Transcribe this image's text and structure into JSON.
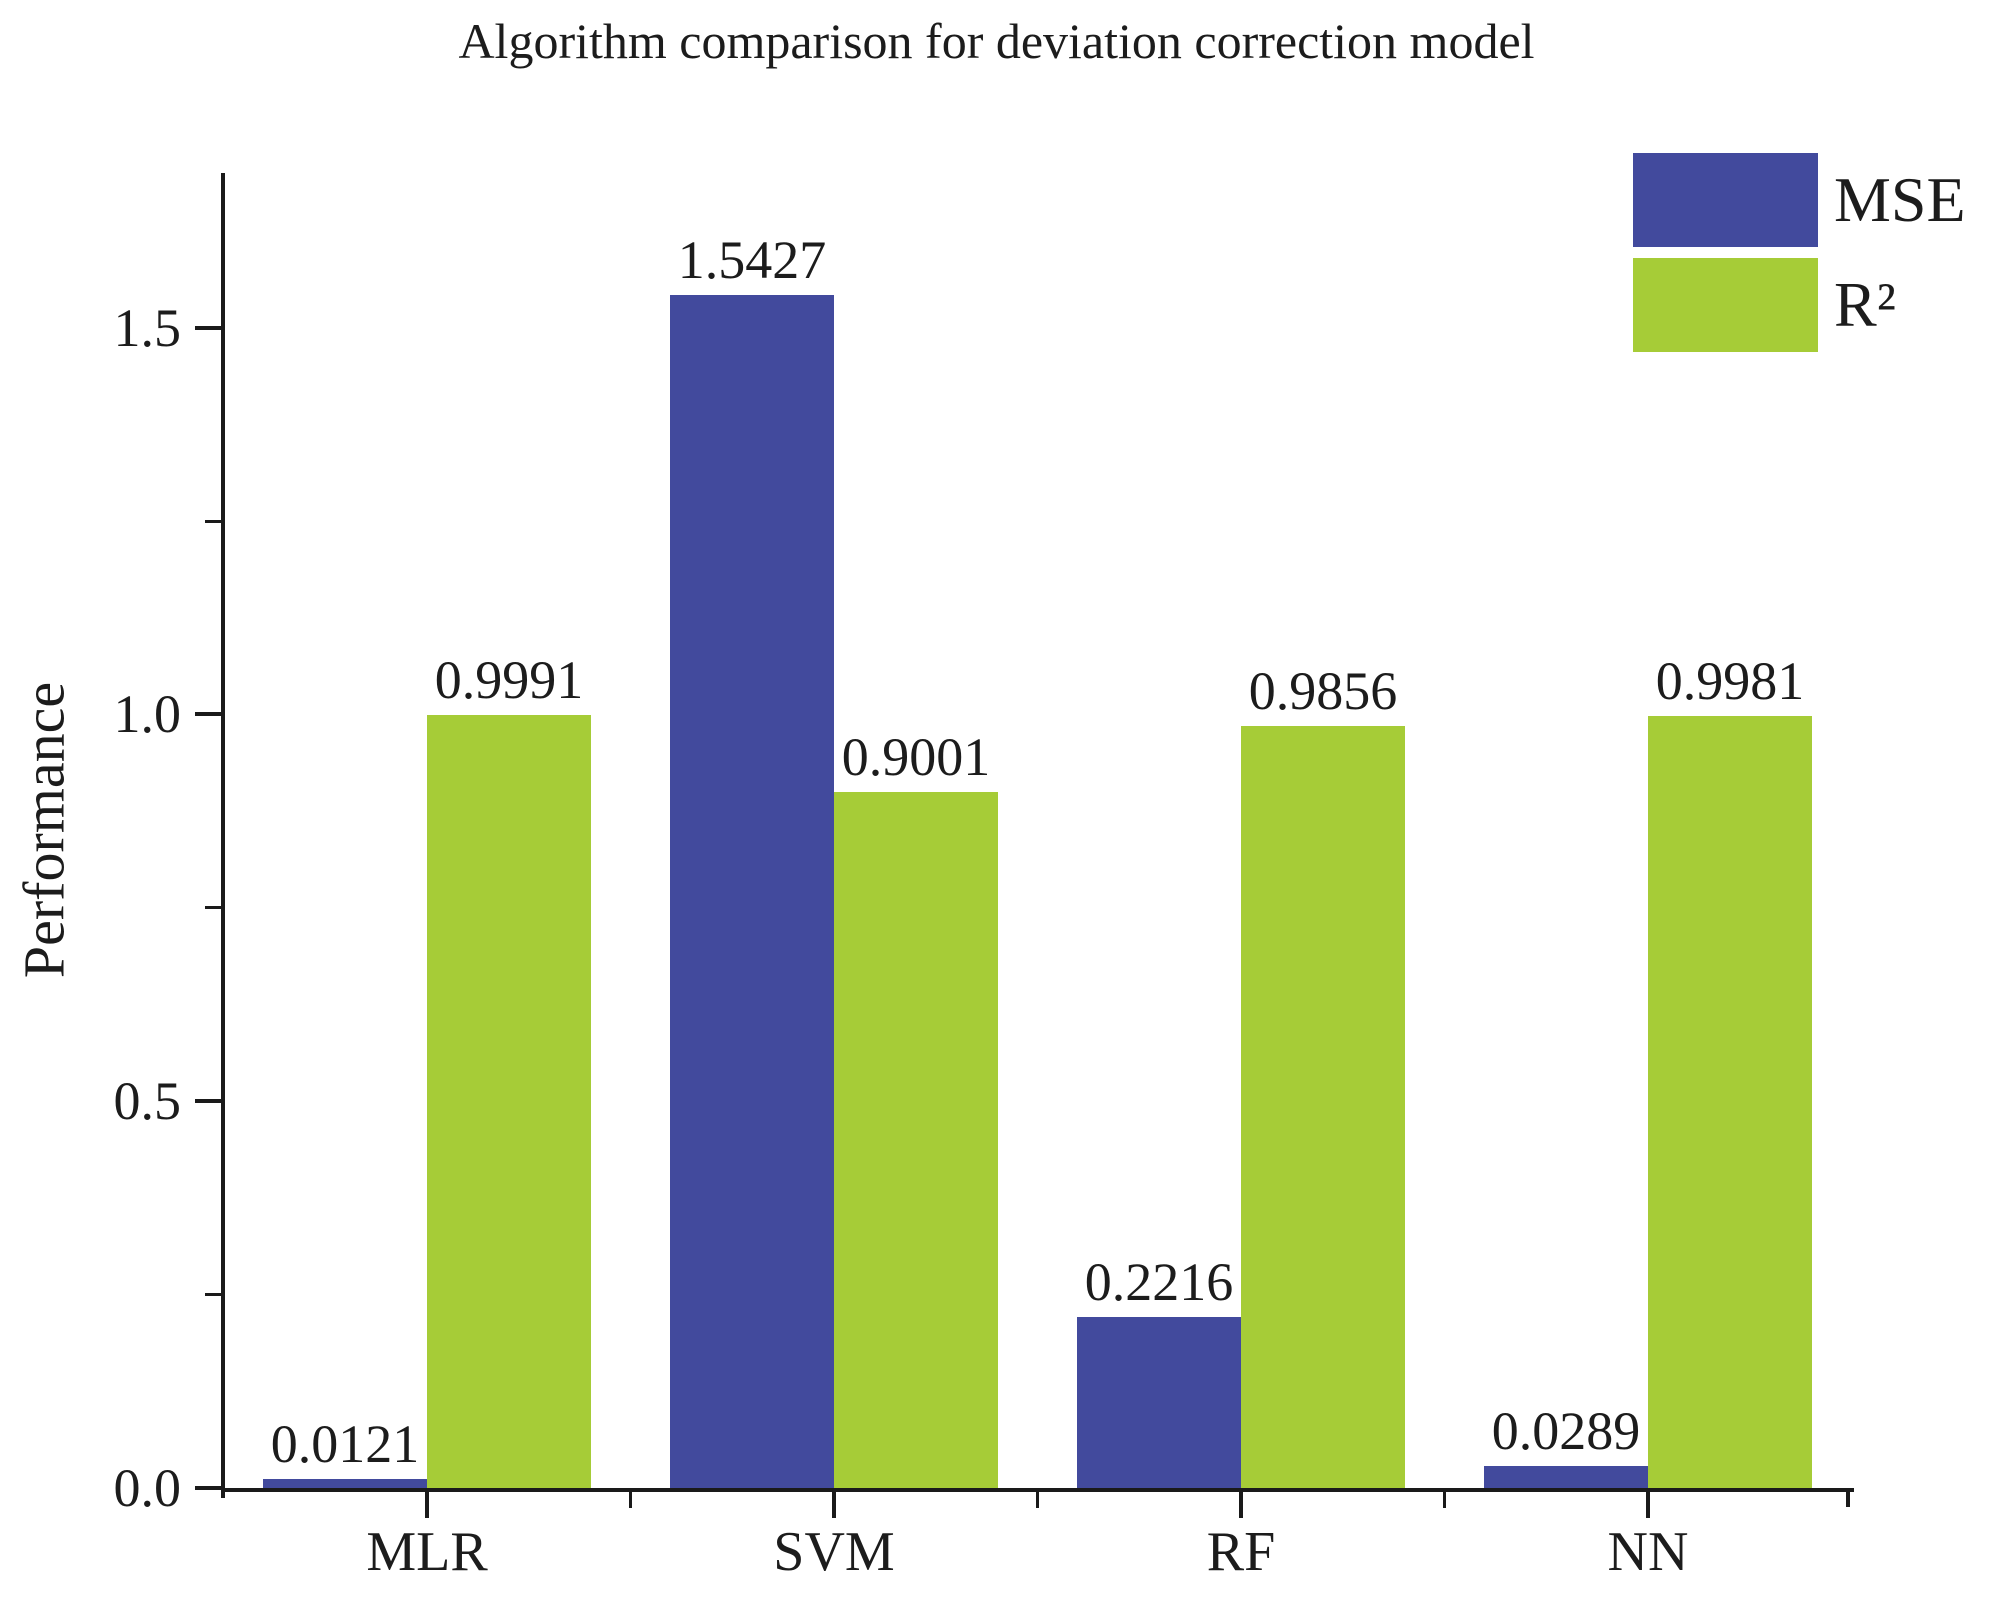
{
  "chart_data": {
    "type": "bar",
    "title": "Algorithm comparison for deviation correction model",
    "xlabel": "",
    "ylabel": "Performance",
    "categories": [
      "MLR",
      "SVM",
      "RF",
      "NN"
    ],
    "series": [
      {
        "name": "MSE",
        "color": "#424a9d",
        "values": [
          0.0121,
          1.5427,
          0.2216,
          0.0289
        ],
        "value_labels": [
          "0.0121",
          "1.5427",
          "0.2216",
          "0.0289"
        ]
      },
      {
        "name": "R²",
        "color": "#a6cc37",
        "values": [
          0.9991,
          0.9001,
          0.9856,
          0.9981
        ],
        "value_labels": [
          "0.9991",
          "0.9001",
          "0.9856",
          "0.9981"
        ]
      }
    ],
    "ylim": [
      0,
      1.7
    ],
    "yticks": [
      0.0,
      0.5,
      1.0,
      1.5
    ],
    "ytick_labels": [
      "0.0",
      "0.5",
      "1.0",
      "1.5"
    ],
    "yminor_step": 0.25,
    "grid": false,
    "legend_position": "top-right",
    "axis_color": "#1a1a1a",
    "text_color": "#1c1c1c"
  }
}
